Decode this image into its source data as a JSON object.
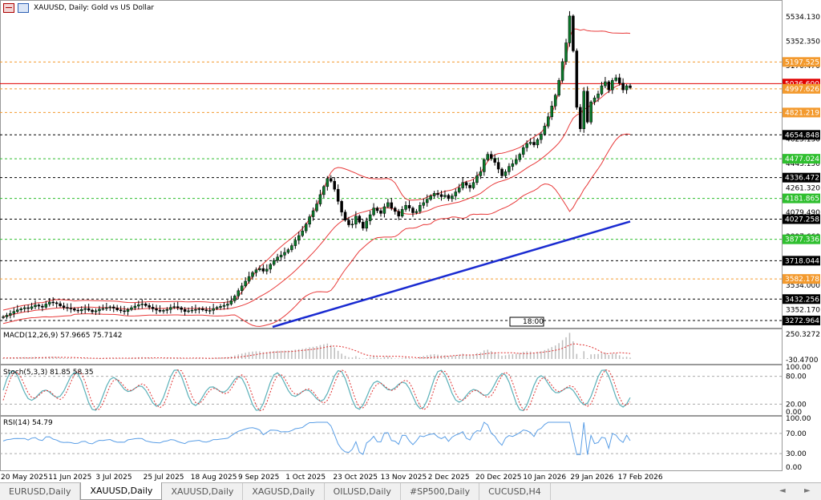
{
  "header": {
    "symbol": "XAUUSD",
    "timeframe": "Daily",
    "description": "Gold vs US Dollar",
    "title_text": "XAUUSD, Daily:  Gold vs US Dollar"
  },
  "tabs": [
    {
      "label": "EURUSD,Daily",
      "active": false
    },
    {
      "label": "XAUUSD,Daily",
      "active": true
    },
    {
      "label": "XAUUSD,Daily",
      "active": false
    },
    {
      "label": "XAGUSD,Daily",
      "active": false
    },
    {
      "label": "OILUSD,Daily",
      "active": false
    },
    {
      "label": "#SP500,Daily",
      "active": false
    },
    {
      "label": "CUCUSD,H4",
      "active": false
    }
  ],
  "tab_nav": {
    "left": "◄",
    "right": "►"
  },
  "colors": {
    "bull": "#0a7a2a",
    "bear": "#000000",
    "bollinger": "#e83a3a",
    "ma": "#1a2bd1",
    "orange_level": "#f39a2e",
    "green_level": "#2fbf2f",
    "black_level": "#000000",
    "red_level": "#e00000",
    "macd_hist": "#bdbdbd",
    "macd_signal": "#e03030",
    "stoch_main": "#5ab0b8",
    "stoch_signal": "#e03030",
    "rsi": "#5a9ee6"
  },
  "chart_data": [
    {
      "type": "candlestick",
      "title": "XAUUSD, Daily:  Gold vs US Dollar",
      "ylim": [
        3225,
        5635
      ],
      "x_labels": [
        "20 May 2025",
        "11 Jun 2025",
        "3 Jul 2025",
        "25 Jul 2025",
        "18 Aug 2025",
        "9 Sep 2025",
        "1 Oct 2025",
        "23 Oct 2025",
        "13 Nov 2025",
        "2 Dec 2025",
        "20 Dec 2025",
        "10 Jan 2026",
        "29 Jan 2026",
        "17 Feb 2026"
      ],
      "y_tick_labels": [
        5534.13,
        5352.35,
        5170.47,
        4988.69,
        4806.91,
        4625.13,
        4443.15,
        4261.32,
        4079.49,
        3897.66,
        3715.83,
        3534.0,
        3352.17
      ],
      "price_levels": [
        {
          "label": "5197.525",
          "value": 5197.525,
          "style": "orange"
        },
        {
          "label": "5036.600",
          "value": 5036.6,
          "style": "red"
        },
        {
          "label": "4997.626",
          "value": 4997.626,
          "style": "orange"
        },
        {
          "label": "4821.219",
          "value": 4821.219,
          "style": "orange"
        },
        {
          "label": "4654.848",
          "value": 4654.848,
          "style": "black"
        },
        {
          "label": "4477.024",
          "value": 4477.024,
          "style": "green"
        },
        {
          "label": "4336.472",
          "value": 4336.472,
          "style": "black"
        },
        {
          "label": "4181.865",
          "value": 4181.865,
          "style": "green"
        },
        {
          "label": "4027.258",
          "value": 4027.258,
          "style": "black"
        },
        {
          "label": "3877.336",
          "value": 3877.336,
          "style": "green"
        },
        {
          "label": "3718.044",
          "value": 3718.044,
          "style": "black"
        },
        {
          "label": "3582.178",
          "value": 3582.178,
          "style": "orange"
        },
        {
          "label": "3432.256",
          "value": 3432.256,
          "style": "black"
        },
        {
          "label": "3272.964",
          "value": 3272.964,
          "style": "black"
        }
      ],
      "time_marker": "18:00",
      "close_series": [
        3300,
        3312,
        3325,
        3340,
        3352,
        3360,
        3368,
        3362,
        3375,
        3388,
        3380,
        3372,
        3395,
        3410,
        3405,
        3398,
        3382,
        3370,
        3365,
        3360,
        3350,
        3345,
        3355,
        3362,
        3350,
        3338,
        3345,
        3358,
        3362,
        3368,
        3374,
        3365,
        3352,
        3345,
        3340,
        3355,
        3368,
        3380,
        3390,
        3396,
        3384,
        3372,
        3360,
        3350,
        3342,
        3348,
        3355,
        3370,
        3376,
        3368,
        3355,
        3340,
        3345,
        3350,
        3355,
        3360,
        3352,
        3345,
        3348,
        3362,
        3370,
        3378,
        3386,
        3395,
        3420,
        3455,
        3495,
        3530,
        3565,
        3600,
        3630,
        3650,
        3660,
        3640,
        3655,
        3690,
        3720,
        3745,
        3760,
        3780,
        3800,
        3830,
        3870,
        3905,
        3940,
        3990,
        4045,
        4090,
        4140,
        4210,
        4270,
        4330,
        4310,
        4250,
        4160,
        4080,
        4020,
        3985,
        3990,
        4050,
        4005,
        3960,
        4015,
        4060,
        4110,
        4090,
        4070,
        4120,
        4150,
        4110,
        4085,
        4050,
        4100,
        4130,
        4110,
        4075,
        4085,
        4130,
        4150,
        4175,
        4200,
        4220,
        4210,
        4195,
        4205,
        4180,
        4200,
        4230,
        4260,
        4300,
        4280,
        4260,
        4300,
        4350,
        4380,
        4470,
        4510,
        4480,
        4450,
        4400,
        4350,
        4380,
        4420,
        4440,
        4470,
        4510,
        4560,
        4590,
        4600,
        4580,
        4620,
        4660,
        4720,
        4790,
        4870,
        4950,
        5060,
        5200,
        5340,
        5540,
        5280,
        4860,
        4700,
        4980,
        4750,
        4900,
        4930,
        4960,
        5020,
        5050,
        4990,
        5060,
        5080,
        5040,
        4990,
        5020,
        5006
      ],
      "bollinger_upper_end": 5280,
      "bollinger_lower_end": 4700,
      "ma200_start": 3225,
      "ma200_end": 4010
    },
    {
      "type": "macd",
      "params_label": "MACD(12,26,9) 57.9665 75.7142",
      "macd": 57.9665,
      "signal": 75.7142,
      "y_tick_labels": [
        "250.3272",
        "-30.4700"
      ]
    },
    {
      "type": "stochastic",
      "params_label": "Stoch(5,3,3) 81.85 58.35",
      "main": 81.85,
      "signal": 58.35,
      "y_tick_labels": [
        "100.00",
        "80.00",
        "20.00",
        "0.00"
      ]
    },
    {
      "type": "rsi",
      "params_label": "RSI(14) 54.79",
      "value": 54.79,
      "y_tick_labels": [
        "100.00",
        "70.00",
        "30.00",
        "0.00"
      ]
    }
  ]
}
